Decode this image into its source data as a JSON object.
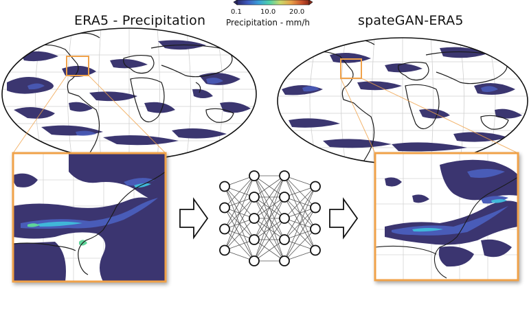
{
  "left_panel": {
    "title": "ERA5 - Precipitation"
  },
  "right_panel": {
    "title": "spateGAN-ERA5"
  },
  "colorbar": {
    "label": "Precipitation - mm/h",
    "ticks": [
      "0.1",
      "10.0",
      "20.0"
    ],
    "colors": [
      "#2b2a6b",
      "#3f5bbf",
      "#3a9fd8",
      "#4fd1a8",
      "#c9d96a",
      "#e8a24a",
      "#c9502b",
      "#8a2a1a"
    ]
  },
  "colors": {
    "precip_dark": "#3b3670",
    "precip_mid": "#4a5bb8",
    "precip_light": "#3fb7d9",
    "precip_green": "#5fd49a",
    "inset_border": "#f0a24a",
    "coastline": "#1a1a1a",
    "node_stroke": "#111111"
  },
  "network": {
    "layers": [
      4,
      5,
      5,
      4
    ]
  }
}
